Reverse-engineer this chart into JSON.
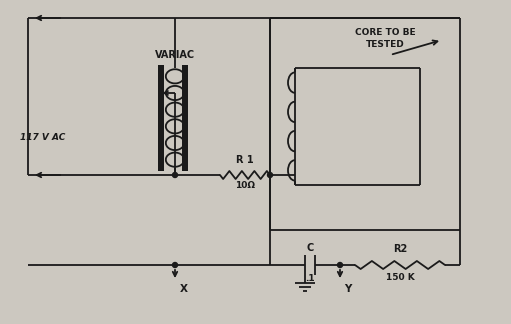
{
  "background_color": "#ccc8c0",
  "line_color": "#1a1a1a",
  "labels": {
    "variac": "VARIAC",
    "voltage": "117 V AC",
    "r1": "R 1",
    "r1_val": "10Ω",
    "r2": "R2",
    "r2_val": "150 K",
    "c": "C",
    "c_val": ".1",
    "core_label1": "CORE TO BE",
    "core_label2": "TESTED",
    "x_label": "X",
    "y_label": "Y"
  },
  "figsize": [
    5.11,
    3.24
  ],
  "dpi": 100
}
